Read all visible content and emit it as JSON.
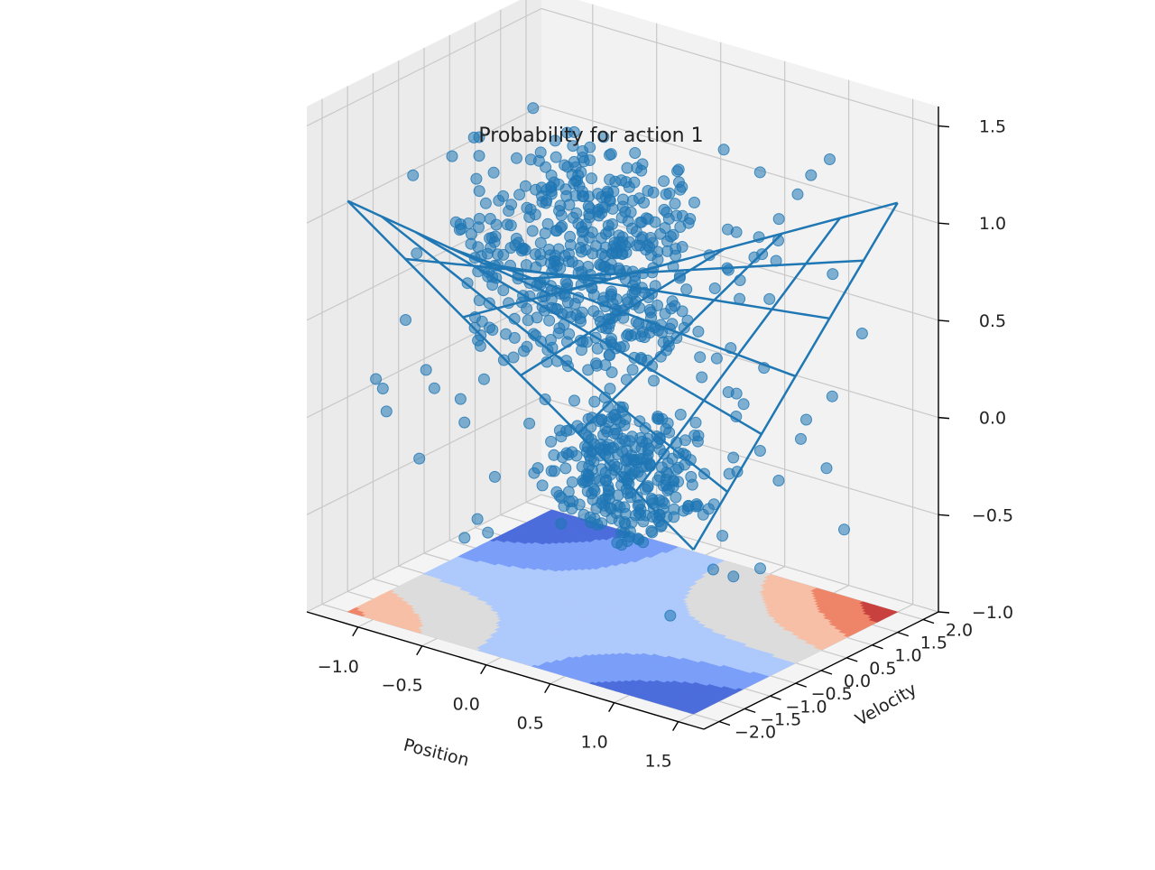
{
  "chart_data": {
    "type": "scatter",
    "title": "Probability for action 1",
    "xlabel": "Position",
    "ylabel": "Velocity",
    "zlabel": "",
    "xlim": [
      -1.4,
      1.7
    ],
    "ylim": [
      -2.3,
      2.3
    ],
    "zlim": [
      -1.0,
      1.6
    ],
    "x_ticks": [
      "−1.0",
      "−0.5",
      "0.0",
      "0.5",
      "1.0",
      "1.5"
    ],
    "y_ticks": [
      "−2.0",
      "−1.5",
      "−1.0",
      "−0.5",
      "0.0",
      "0.5",
      "1.0",
      "1.5",
      "2.0"
    ],
    "z_ticks": [
      "−1.0",
      "−0.5",
      "0.0",
      "0.5",
      "1.0",
      "1.5"
    ],
    "grid": true,
    "series": [
      {
        "kind": "scatter",
        "color": "#1f77b4",
        "clusters": [
          {
            "x_range": [
              -0.6,
              0.6
            ],
            "y_range": [
              -1.4,
              0.6
            ],
            "z_range": [
              0.4,
              1.3
            ],
            "count": 420
          },
          {
            "x_range": [
              0.2,
              1.0
            ],
            "y_range": [
              -1.8,
              -0.4
            ],
            "z_range": [
              -0.3,
              0.2
            ],
            "count": 260
          },
          {
            "x_range": [
              -1.2,
              1.5
            ],
            "y_range": [
              -2.0,
              2.0
            ],
            "z_range": [
              -0.6,
              1.3
            ],
            "count": 160
          }
        ]
      },
      {
        "kind": "wireframe",
        "color": "#1f77b4",
        "x_range": [
          -1.2,
          1.5
        ],
        "y_range": [
          -2.0,
          2.0
        ],
        "resolution": [
          7,
          7
        ]
      },
      {
        "kind": "contourf",
        "colormap": "coolwarm",
        "z_offset": -1.0,
        "levels": [
          {
            "color": "#c9413e"
          },
          {
            "color": "#ee8468"
          },
          {
            "color": "#f6bfa6"
          },
          {
            "color": "#dddcdc"
          },
          {
            "color": "#aec9fc"
          },
          {
            "color": "#7b9ff9"
          },
          {
            "color": "#4c6ddb"
          }
        ]
      }
    ]
  }
}
